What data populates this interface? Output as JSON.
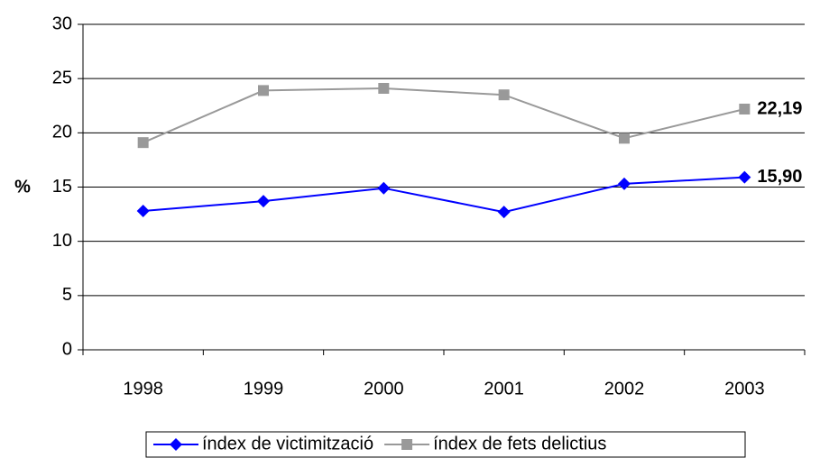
{
  "chart_data": {
    "type": "line",
    "ylabel": "%",
    "categories": [
      "1998",
      "1999",
      "2000",
      "2001",
      "2002",
      "2003"
    ],
    "series": [
      {
        "name": "índex de victimització",
        "color": "#0000ff",
        "marker": "diamond",
        "values": [
          12.8,
          13.7,
          14.9,
          12.7,
          15.3,
          15.9
        ],
        "value_labels": [
          null,
          null,
          null,
          null,
          null,
          "15,90"
        ]
      },
      {
        "name": "índex de fets delictius",
        "color": "#999999",
        "marker": "square",
        "values": [
          19.1,
          23.9,
          24.1,
          23.5,
          19.5,
          22.19
        ],
        "value_labels": [
          null,
          null,
          null,
          null,
          null,
          "22,19"
        ]
      }
    ],
    "ylim": [
      0,
      30
    ],
    "yticks": [
      0,
      5,
      10,
      15,
      20,
      25,
      30
    ],
    "grid": true
  }
}
